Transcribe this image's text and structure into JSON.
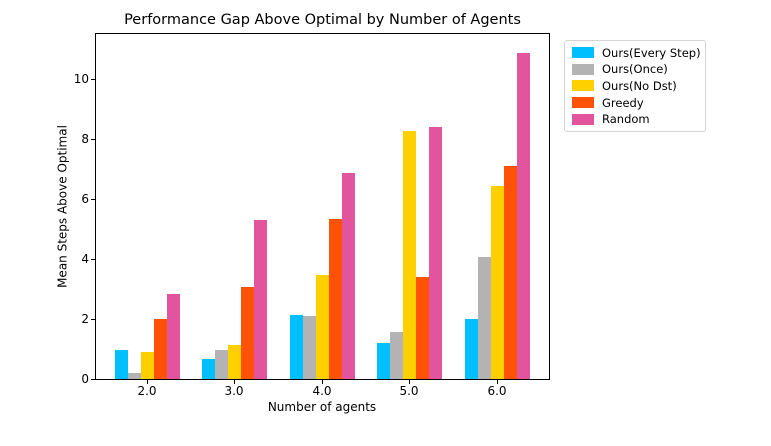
{
  "chart_data": {
    "type": "bar",
    "title": "Performance Gap Above Optimal by Number of Agents",
    "xlabel": "Number of agents",
    "ylabel": "Mean Steps Above Optimal",
    "categories": [
      "2.0",
      "3.0",
      "4.0",
      "5.0",
      "6.0"
    ],
    "series": [
      {
        "name": "Ours(Every Step)",
        "color": "#00BFFF",
        "values": [
          0.97,
          0.68,
          2.15,
          1.2,
          2.0
        ]
      },
      {
        "name": "Ours(Once)",
        "color": "#B3B3B3",
        "values": [
          0.21,
          0.98,
          2.1,
          1.58,
          4.07
        ]
      },
      {
        "name": "Ours(No Dst)",
        "color": "#FFD000",
        "values": [
          0.89,
          1.15,
          3.48,
          8.28,
          6.44
        ]
      },
      {
        "name": "Greedy",
        "color": "#FF5206",
        "values": [
          2.0,
          3.08,
          5.33,
          3.41,
          7.11
        ]
      },
      {
        "name": "Random",
        "color": "#E2549E",
        "values": [
          2.83,
          5.29,
          6.86,
          8.41,
          10.88
        ]
      }
    ],
    "yticks": [
      "0",
      "2",
      "4",
      "6",
      "8",
      "10"
    ],
    "ylim": [
      0,
      11.5
    ],
    "grid": false,
    "legend_position": "outside-upper-right"
  }
}
